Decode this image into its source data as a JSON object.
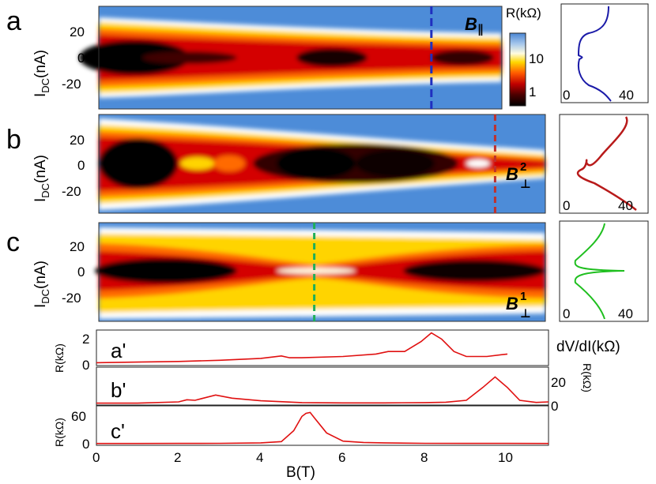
{
  "chart_data": [
    {
      "type": "heatmap",
      "panel": "a",
      "field_label": "B∥",
      "ylabel": "I_DC(nA)",
      "x_range": [
        0,
        11
      ],
      "y_range": [
        -40,
        40
      ],
      "y_ticks": [
        20,
        0,
        -20
      ],
      "cut_B": 8.15,
      "cut_color": "#1f2fbf",
      "colorbar": {
        "title": "R(kΩ)",
        "ticks": [
          10,
          1
        ],
        "scale": "log"
      },
      "side_plot": {
        "xlabel": "dV/dI(kΩ)",
        "x_ticks": [
          0,
          40
        ],
        "color": "#1a1aa8"
      }
    },
    {
      "type": "heatmap",
      "panel": "b",
      "field_label": "B⊥2",
      "ylabel": "I_DC(nA)",
      "x_range": [
        0,
        11
      ],
      "y_range": [
        -40,
        40
      ],
      "y_ticks": [
        20,
        0,
        -20
      ],
      "cut_B": 9.7,
      "cut_color": "#c0302b",
      "side_plot": {
        "x_ticks": [
          0,
          40
        ],
        "color": "#b81a1a"
      }
    },
    {
      "type": "heatmap",
      "panel": "c",
      "field_label": "B⊥1",
      "ylabel": "I_DC(nA)",
      "x_range": [
        0,
        11
      ],
      "y_range": [
        -40,
        40
      ],
      "y_ticks": [
        20,
        0,
        -20
      ],
      "cut_B": 5.3,
      "cut_color": "#1fae5a",
      "side_plot": {
        "x_ticks": [
          0,
          40
        ],
        "color": "#1fbf1f"
      }
    },
    {
      "type": "line",
      "panel": "a'",
      "ylabel": "R(kΩ)",
      "y_ticks": [
        2,
        0
      ],
      "ylim": [
        0,
        2.6
      ],
      "x": [
        0,
        1,
        2,
        3,
        4,
        4.5,
        4.7,
        5,
        6,
        6.8,
        7.1,
        7.5,
        7.9,
        8.15,
        8.4,
        8.7,
        9,
        9.5,
        10
      ],
      "y": [
        0.1,
        0.15,
        0.2,
        0.3,
        0.45,
        0.65,
        0.5,
        0.5,
        0.6,
        0.8,
        1.0,
        1.0,
        1.8,
        2.5,
        2.0,
        1.0,
        0.6,
        0.6,
        0.8
      ]
    },
    {
      "type": "line",
      "panel": "b'",
      "ylabel": "R(kΩ)",
      "y_ticks": [
        20,
        0
      ],
      "ylim": [
        0,
        32
      ],
      "x": [
        0,
        1,
        2,
        2.2,
        2.4,
        2.6,
        2.9,
        3.3,
        4,
        5,
        6,
        7,
        8,
        8.5,
        9,
        9.4,
        9.7,
        10,
        10.3,
        10.7,
        11
      ],
      "y": [
        0.3,
        0.3,
        1.5,
        3.5,
        3,
        5,
        8,
        5,
        2.5,
        0.8,
        0.5,
        0.5,
        0.8,
        1.2,
        3,
        15,
        25,
        15,
        3,
        1,
        1.5
      ]
    },
    {
      "type": "line",
      "panel": "c'",
      "ylabel": "R(kΩ)",
      "y_ticks": [
        60,
        0
      ],
      "ylim": [
        0,
        80
      ],
      "xlabel": "B(T)",
      "x_ticks": [
        0,
        2,
        4,
        6,
        8,
        10
      ],
      "x": [
        0,
        1,
        2,
        3,
        4,
        4.5,
        4.8,
        5.0,
        5.1,
        5.2,
        5.3,
        5.6,
        6,
        6.5,
        7,
        8,
        9,
        10,
        11
      ],
      "y": [
        0.5,
        0.5,
        0.7,
        1,
        2,
        5,
        30,
        63,
        70,
        72,
        60,
        25,
        6,
        3,
        2,
        1,
        0.8,
        0.8,
        0.6
      ]
    }
  ],
  "panel_labels": {
    "a": "a",
    "b": "b",
    "c": "c",
    "ap": "a'",
    "bp": "b'",
    "cp": "c'"
  },
  "axis_text": {
    "ylabel_main": "I",
    "ylabel_sub": "DC",
    "ylabel_unit": "(nA)",
    "xlabel": "B(T)",
    "side_xlabel": "dV/dI(kΩ)",
    "colorbar_title": "R(kΩ)",
    "cb_tick_10": "10",
    "cb_tick_1": "1",
    "r_label": "R(kΩ)",
    "y20": "20",
    "y0": "0",
    "ym20": "-20",
    "side0": "0",
    "side40": "40",
    "ap_2": "2",
    "ap_0": "0",
    "bp_20": "20",
    "bp_0": "0",
    "cp_60": "60",
    "cp_0": "0",
    "field_a": "B",
    "field_a_sub": "∥",
    "field_b": "B",
    "field_b_sup": "2",
    "field_b_sub": "⊥",
    "field_c": "B",
    "field_c_sup": "1",
    "field_c_sub": "⊥",
    "bx0": "0",
    "bx2": "2",
    "bx4": "4",
    "bx6": "6",
    "bx8": "8",
    "bx10": "10"
  },
  "colors": {
    "trace_red": "#e01010",
    "cut_a": "#1f2fbf",
    "cut_b": "#c0302b",
    "cut_c": "#1fae5a"
  }
}
